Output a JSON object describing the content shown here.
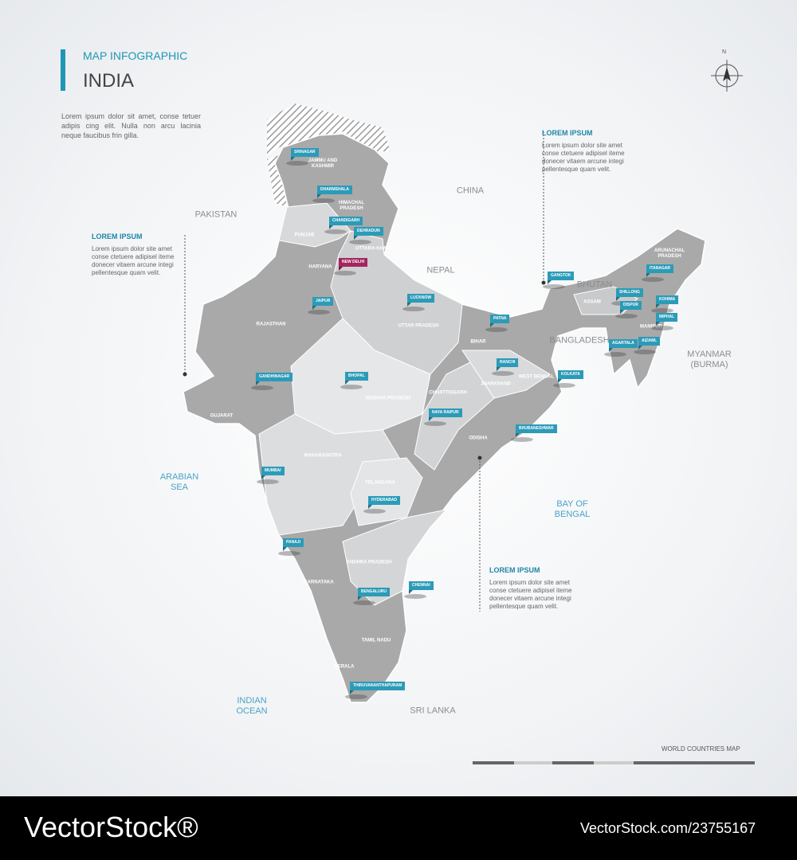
{
  "header": {
    "subtitle": "MAP INFOGRAPHIC",
    "title": "INDIA",
    "text": "Lorem ipsum dolor sit amet, conse tetuer adipis cing elit. Nulla non arcu lacinia neque faucibus frin gilla."
  },
  "compass": "N",
  "callouts": [
    {
      "title": "LOREM IPSUM",
      "text": "Lorem ipsum dolor site amet conse ctetuere adipisel iteme donecer vitaem arcune integi pellentesque quam velit."
    },
    {
      "title": "LOREM IPSUM",
      "text": "Lorem ipsum dolor site amet conse ctetuere adipisel iteme donecer vitaem arcune integi pellentesque quam velit."
    },
    {
      "title": "LOREM IPSUM",
      "text": "Lorem ipsum dolor site amet conse ctetuere adipisel iteme donecer vitaem arcune integi pellentesque quam velit."
    }
  ],
  "neighbors": [
    "PAKISTAN",
    "CHINA",
    "NEPAL",
    "BHUTAN",
    "BANGLADESH",
    "MYANMAR (BURMA)",
    "SRI LANKA"
  ],
  "seas": [
    "ARABIAN SEA",
    "BAY OF BENGAL",
    "INDIAN OCEAN"
  ],
  "states": [
    "JAMMU AND KASHMIR",
    "HIMACHAL PRADESH",
    "PUNJAB",
    "UTTARA-KHAND",
    "HARYANA",
    "RAJASTHAN",
    "UTTAR PRADESH",
    "BIHAR",
    "JHARKHAND",
    "WEST BENGAL",
    "ASSAM",
    "ARUNACHAL PRADESH",
    "MANIPUR",
    "GUJARAT",
    "MADHYA PRADESH",
    "CHHATTISGARH",
    "ODISHA",
    "MAHARASHTRA",
    "TELANGANA",
    "ANDHRA PRADESH",
    "KARNATAKA",
    "GOA",
    "TAMIL NADU",
    "KERALA"
  ],
  "capital": "NEW DELHI",
  "cities": [
    "SRINAGAR",
    "DHARMSHALA",
    "CHANDIGARH",
    "DEHRADUN",
    "JAIPUR",
    "LUCKNOW",
    "PATNA",
    "GANGTOK",
    "ITANAGAR",
    "SHILLONG",
    "DISPUR",
    "KOHIMA",
    "IMPHAL",
    "AGARTALA",
    "AIZAWL",
    "RANCHI",
    "KOLKATA",
    "GANDHINAGAR",
    "BHOPAL",
    "NAYA RAIPUR",
    "BHUBANESHWAR",
    "MUMBAI",
    "HYDERABAD",
    "PANAJI",
    "BENGALURU",
    "CHENNAI",
    "THIRUVANANTHAPURAM"
  ],
  "footer": {
    "label": "WORLD COUNTRIES MAP"
  },
  "watermark": {
    "brand": "VectorStock®",
    "id": "VectorStock.com/23755167"
  }
}
